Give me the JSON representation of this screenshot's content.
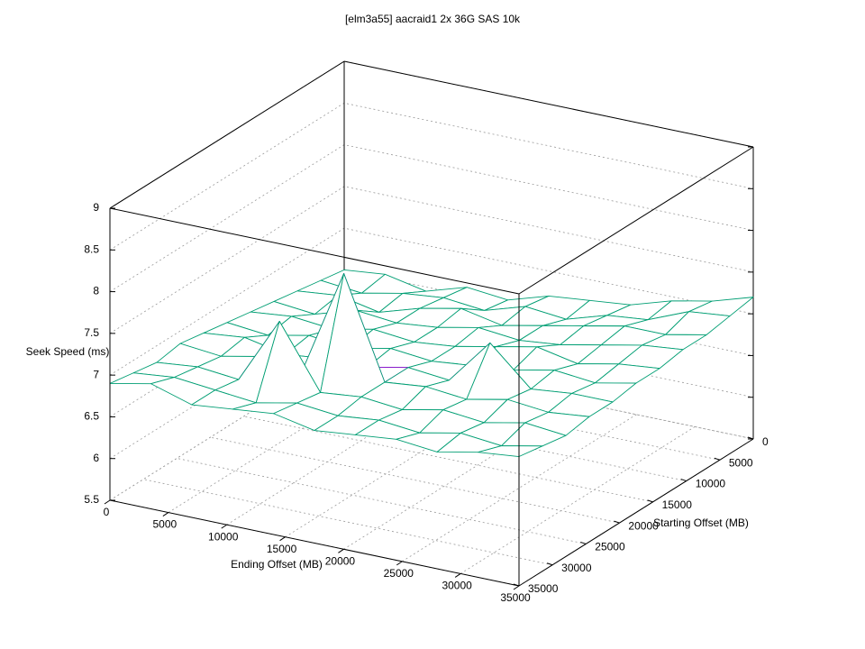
{
  "chart_data": {
    "type": "surface",
    "title": "[elm3a55] aacraid1 2x 36G SAS 10k",
    "x_label": "Ending Offset (MB)",
    "y_label": "Starting Offset (MB)",
    "z_label": "Seek Speed (ms)",
    "x": [
      0,
      3500,
      7000,
      10500,
      14000,
      17500,
      21000,
      24500,
      28000,
      31500,
      35000
    ],
    "y": [
      0,
      3500,
      7000,
      10500,
      14000,
      17500,
      21000,
      24500,
      28000,
      31500,
      35000
    ],
    "z": [
      [
        6.5,
        6.55,
        6.45,
        6.6,
        6.55,
        6.7,
        6.75,
        6.8,
        6.95,
        7.05,
        7.2
      ],
      [
        6.55,
        6.5,
        6.6,
        6.65,
        6.6,
        6.75,
        6.7,
        6.85,
        6.9,
        7.1,
        7.15
      ],
      [
        6.6,
        6.65,
        6.55,
        6.7,
        6.8,
        6.7,
        6.8,
        6.9,
        7.0,
        7.0,
        7.1
      ],
      [
        6.65,
        6.6,
        6.75,
        6.7,
        6.75,
        6.85,
        6.8,
        6.85,
        6.95,
        7.05,
        7.1
      ],
      [
        6.7,
        6.75,
        6.7,
        6.8,
        6.75,
        6.8,
        6.9,
        7.0,
        6.9,
        7.0,
        7.05
      ],
      [
        6.75,
        6.7,
        6.8,
        6.75,
        6.85,
        6.8,
        6.85,
        6.9,
        7.0,
        6.95,
        7.05
      ],
      [
        6.8,
        6.85,
        6.75,
        6.8,
        6.8,
        6.9,
        6.85,
        7.4,
        6.95,
        7.0,
        7.0
      ],
      [
        6.85,
        6.8,
        6.9,
        6.85,
        8.1,
        6.9,
        6.95,
        6.9,
        7.0,
        6.95,
        7.0
      ],
      [
        6.8,
        6.85,
        6.8,
        7.6,
        6.85,
        6.9,
        6.85,
        6.95,
        6.9,
        7.0,
        6.95
      ],
      [
        6.85,
        6.9,
        6.85,
        6.8,
        6.9,
        6.85,
        6.9,
        6.85,
        6.95,
        6.9,
        7.0
      ],
      [
        6.9,
        7.0,
        6.85,
        6.9,
        6.95,
        6.85,
        6.9,
        6.95,
        6.9,
        7.0,
        7.05
      ]
    ],
    "color": "#9400d3",
    "underside_color": "#009e73",
    "xlim": [
      0,
      35000
    ],
    "ylim": [
      0,
      35000
    ],
    "zlim": [
      5.5,
      9
    ],
    "xticks": [
      0,
      5000,
      10000,
      15000,
      20000,
      25000,
      30000,
      35000
    ],
    "yticks": [
      0,
      5000,
      10000,
      15000,
      20000,
      25000,
      30000,
      35000
    ],
    "zticks": [
      5.5,
      6,
      6.5,
      7,
      7.5,
      8,
      8.5,
      9
    ],
    "grid": true
  }
}
